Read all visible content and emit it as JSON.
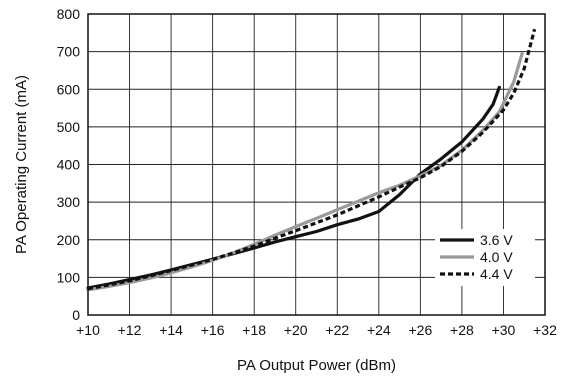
{
  "chart_data": {
    "type": "line",
    "title": "",
    "xlabel": "PA Output Power (dBm)",
    "ylabel": "PA Operating Current (mA)",
    "xlim": [
      10,
      32
    ],
    "ylim": [
      0,
      800
    ],
    "x_ticks": [
      10,
      12,
      14,
      16,
      18,
      20,
      22,
      24,
      26,
      28,
      30,
      32
    ],
    "x_tick_labels": [
      "+10",
      "+12",
      "+14",
      "+16",
      "+18",
      "+20",
      "+22",
      "+24",
      "+26",
      "+28",
      "+30",
      "+32"
    ],
    "y_ticks": [
      0,
      100,
      200,
      300,
      400,
      500,
      600,
      700,
      800
    ],
    "y_tick_labels": [
      "0",
      "100",
      "200",
      "300",
      "400",
      "500",
      "600",
      "700",
      "800"
    ],
    "grid": true,
    "legend_position": "lower-right",
    "series": [
      {
        "name": "3.6 V",
        "color": "#111111",
        "style": "solid",
        "x": [
          10,
          11,
          12,
          13,
          14,
          15,
          16,
          17,
          18,
          19,
          20,
          21,
          22,
          23,
          24,
          25,
          26,
          27,
          28,
          29,
          29.5,
          29.8
        ],
        "y": [
          72,
          82,
          94,
          106,
          120,
          134,
          148,
          163,
          178,
          194,
          208,
          222,
          240,
          255,
          275,
          320,
          375,
          415,
          460,
          520,
          560,
          605
        ]
      },
      {
        "name": "4.0 V",
        "color": "#999999",
        "style": "solid",
        "x": [
          10,
          11,
          12,
          13,
          14,
          15,
          16,
          17,
          18,
          19,
          20,
          21,
          22,
          23,
          24,
          25,
          26,
          27,
          28,
          29,
          29.8,
          30.5,
          30.9
        ],
        "y": [
          67,
          76,
          86,
          98,
          112,
          128,
          145,
          165,
          188,
          212,
          235,
          257,
          280,
          302,
          325,
          345,
          370,
          398,
          438,
          490,
          540,
          620,
          695
        ]
      },
      {
        "name": "4.4 V",
        "color": "#111111",
        "style": "dashed",
        "x": [
          10,
          11,
          12,
          13,
          14,
          15,
          16,
          17,
          18,
          19,
          20,
          21,
          22,
          23,
          24,
          25,
          26,
          27,
          28,
          29,
          30,
          30.5,
          31,
          31.5
        ],
        "y": [
          70,
          80,
          91,
          104,
          118,
          133,
          148,
          165,
          183,
          204,
          224,
          245,
          266,
          290,
          314,
          340,
          365,
          395,
          435,
          485,
          545,
          590,
          655,
          760
        ]
      }
    ]
  }
}
